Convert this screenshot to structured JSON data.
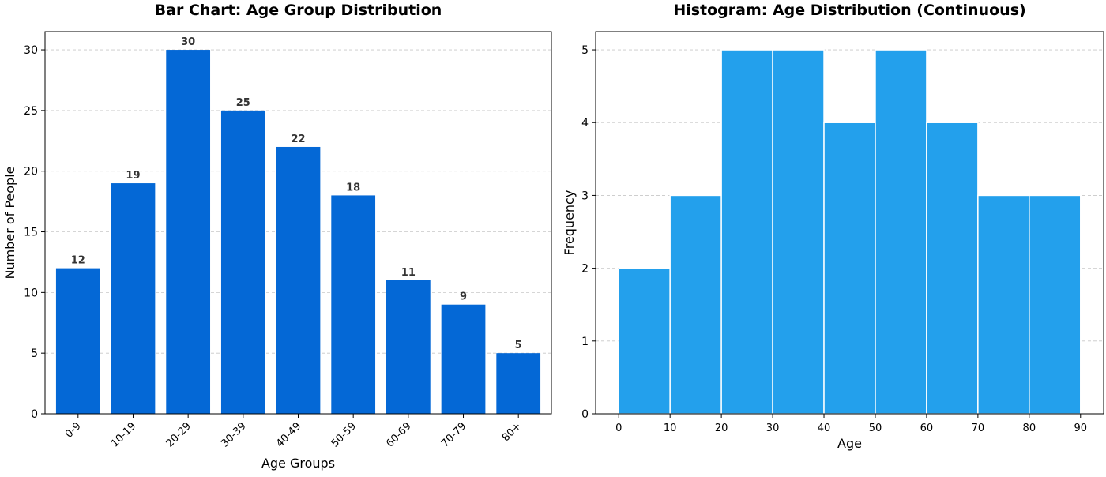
{
  "colors": {
    "bar": "#0468d6",
    "hist": "#23a0ec",
    "grid": "#c8c8c8",
    "axis": "#000000",
    "label": "#333333"
  },
  "chart_data": [
    {
      "type": "bar",
      "title": "Bar Chart: Age Group Distribution",
      "xlabel": "Age Groups",
      "ylabel": "Number of People",
      "categories": [
        "0-9",
        "10-19",
        "20-29",
        "30-39",
        "40-49",
        "50-59",
        "60-69",
        "70-79",
        "80+"
      ],
      "values": [
        12,
        19,
        30,
        25,
        22,
        18,
        11,
        9,
        5
      ],
      "data_labels": [
        "12",
        "19",
        "30",
        "25",
        "22",
        "18",
        "11",
        "9",
        "5"
      ],
      "ylim": [
        0,
        31.5
      ],
      "yticks": [
        0,
        5,
        10,
        15,
        20,
        25,
        30
      ],
      "grid": "y-dashed",
      "x_tick_rotation": 45
    },
    {
      "type": "histogram",
      "title": "Histogram: Age Distribution (Continuous)",
      "xlabel": "Age",
      "ylabel": "Frequency",
      "bins": [
        0,
        10,
        20,
        30,
        40,
        50,
        60,
        70,
        80,
        90
      ],
      "values": [
        2,
        3,
        5,
        5,
        4,
        5,
        4,
        3,
        3
      ],
      "xlim": [
        -4.5,
        94.5
      ],
      "ylim": [
        0,
        5.25
      ],
      "xticks": [
        0,
        10,
        20,
        30,
        40,
        50,
        60,
        70,
        80,
        90
      ],
      "yticks": [
        0,
        1,
        2,
        3,
        4,
        5
      ],
      "grid": "y-dashed"
    }
  ]
}
